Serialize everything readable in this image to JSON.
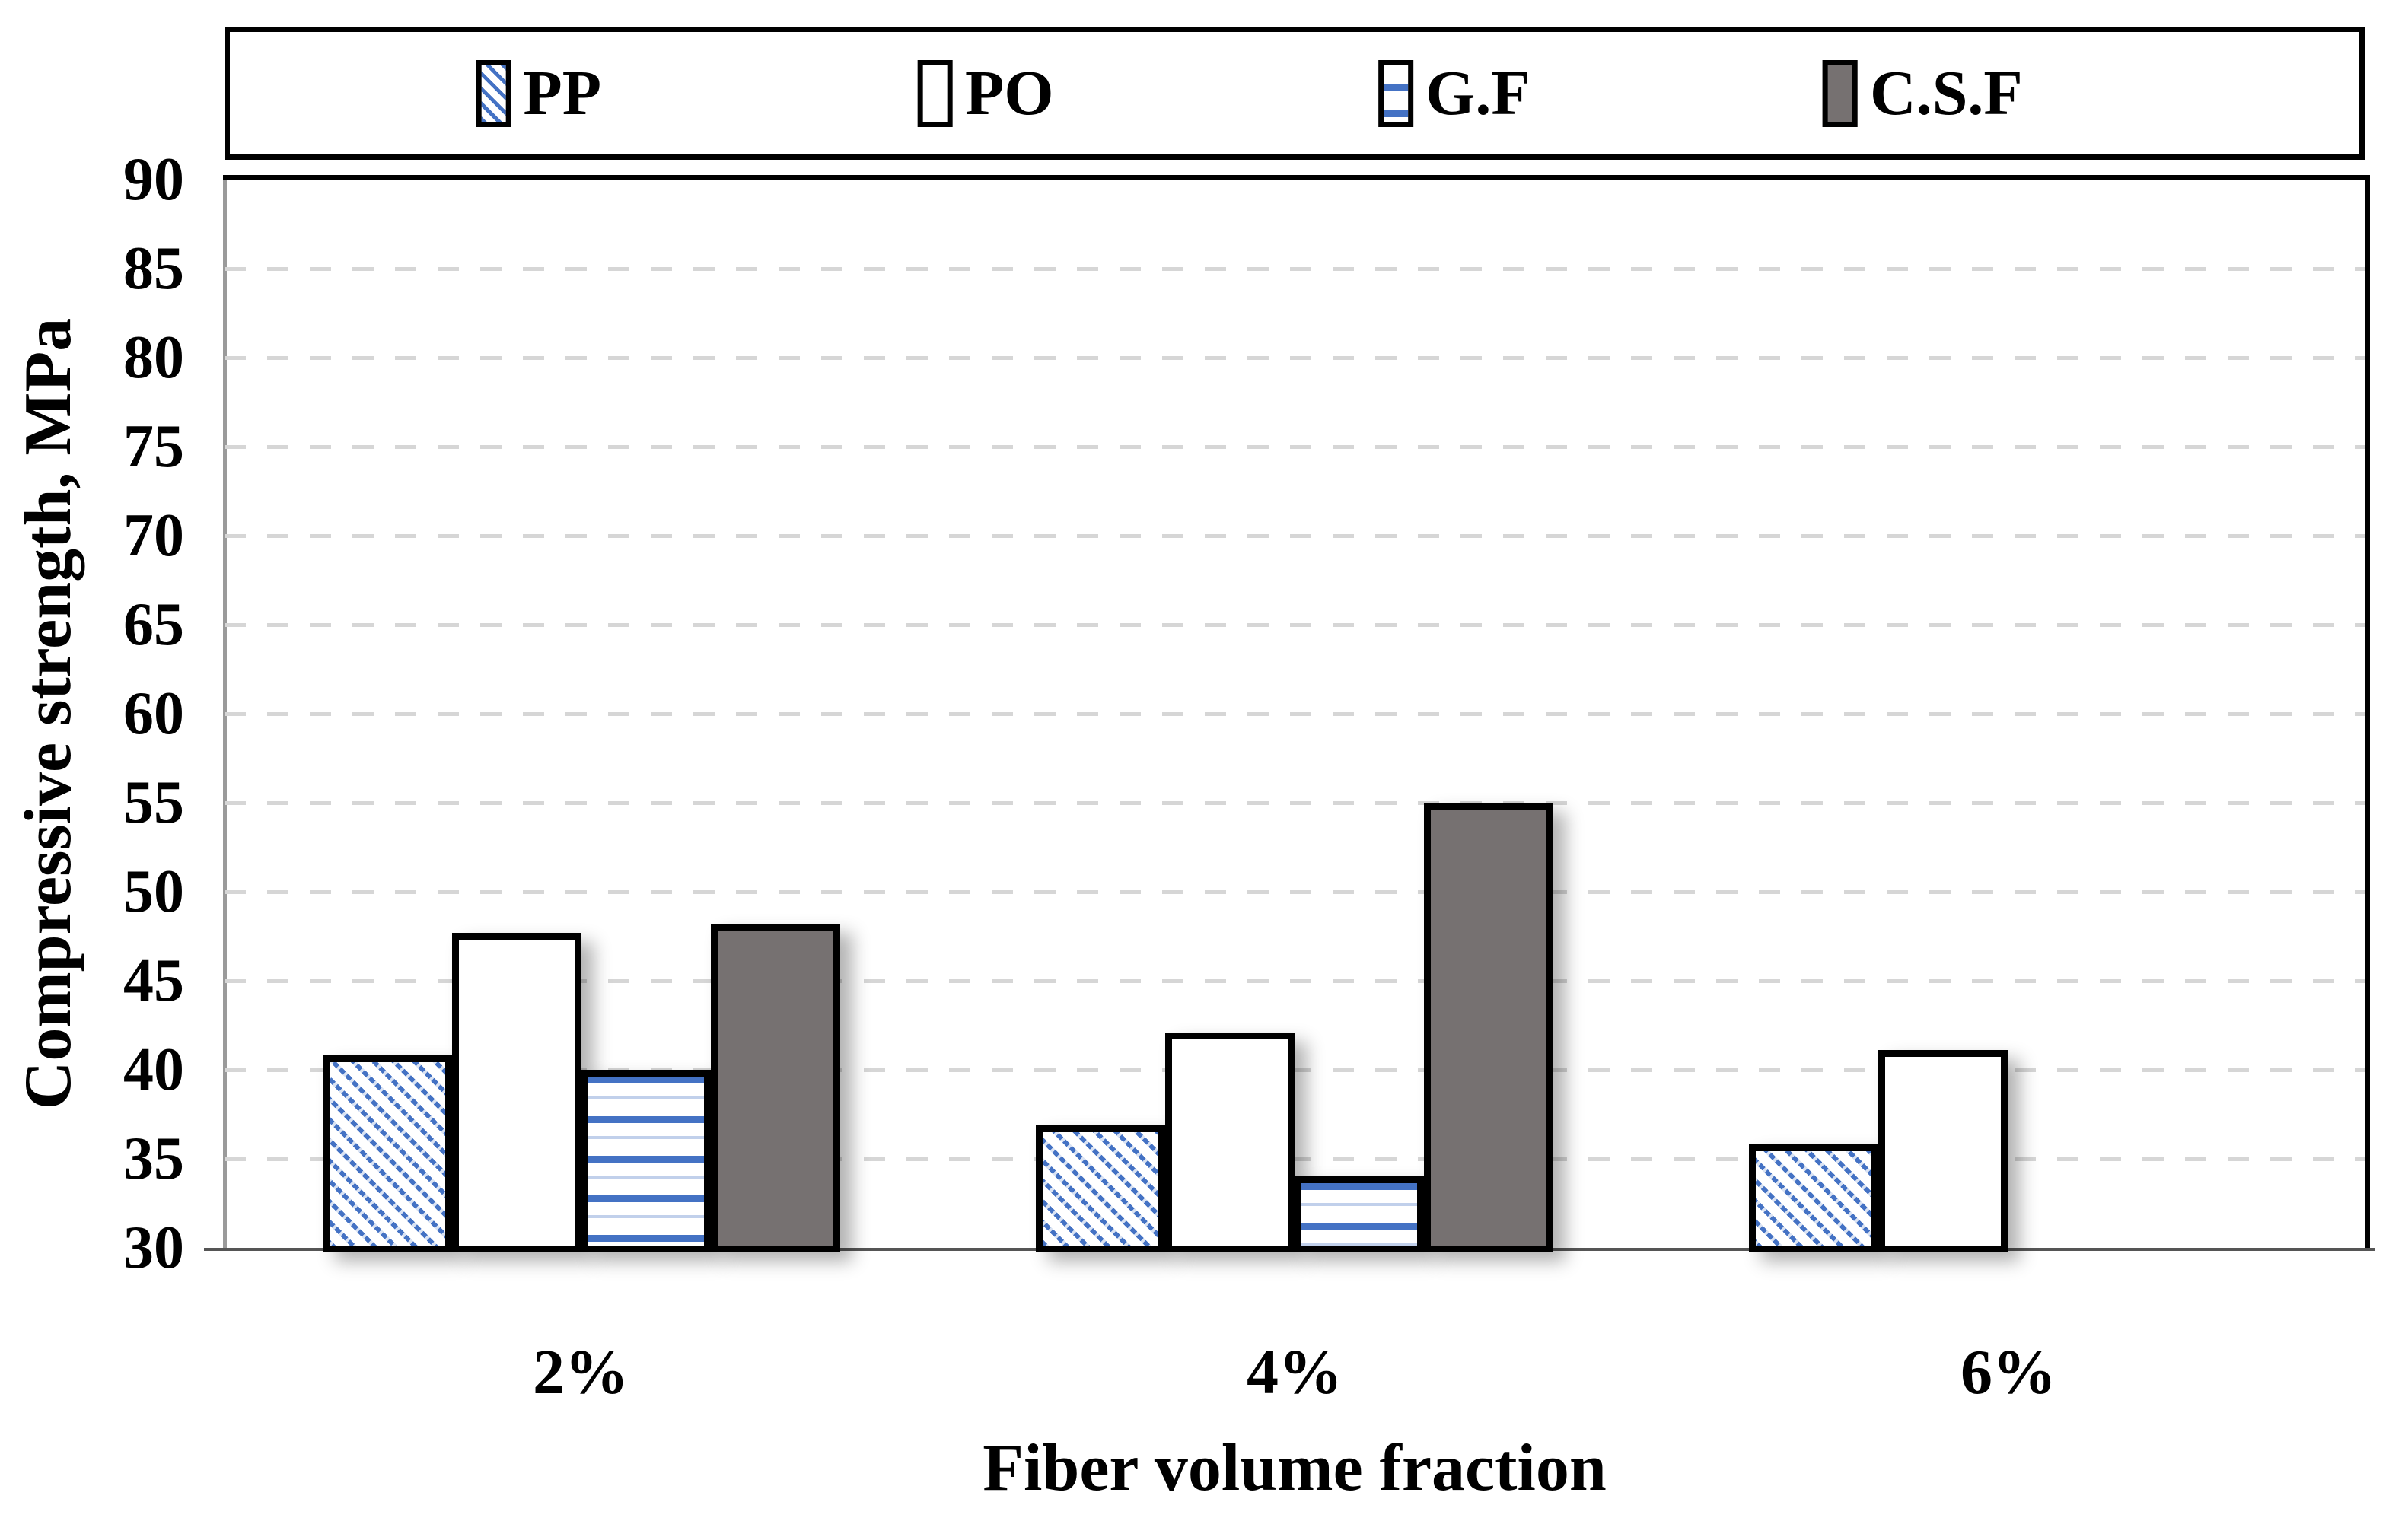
{
  "chart_data": {
    "type": "bar",
    "title": "",
    "categories": [
      "2%",
      "4%",
      "6%"
    ],
    "series": [
      {
        "name": "PP",
        "pattern": "diagonal-hatch",
        "color": "#4472C4",
        "values": [
          40.8,
          36.9,
          35.8
        ]
      },
      {
        "name": "PO",
        "pattern": "solid-white",
        "color": "#FFFFFF",
        "values": [
          47.7,
          42.1,
          41.1
        ]
      },
      {
        "name": "G.F",
        "pattern": "horizontal-stripes",
        "color": "#4472C4",
        "values": [
          40.0,
          34.0,
          null
        ]
      },
      {
        "name": "C.S.F",
        "pattern": "solid-gray",
        "color": "#767171",
        "values": [
          48.2,
          55.0,
          null
        ]
      }
    ],
    "xlabel": "Fiber volume fraction",
    "ylabel": "Compressive strength, MPa",
    "ylim": [
      30,
      90
    ],
    "ytick_step": 5,
    "yticks": [
      90,
      85,
      80,
      75,
      70,
      65,
      60,
      55,
      50,
      45,
      40,
      35,
      30
    ],
    "grid": "dashed-horizontal",
    "legend_position": "top-boxed"
  },
  "colors": {
    "accent_blue": "#4472C4",
    "bar_gray": "#767171",
    "gridline": "#D6D6D6",
    "axis_line": "#9A9A9A",
    "border_black": "#000000",
    "background": "#FFFFFF"
  }
}
